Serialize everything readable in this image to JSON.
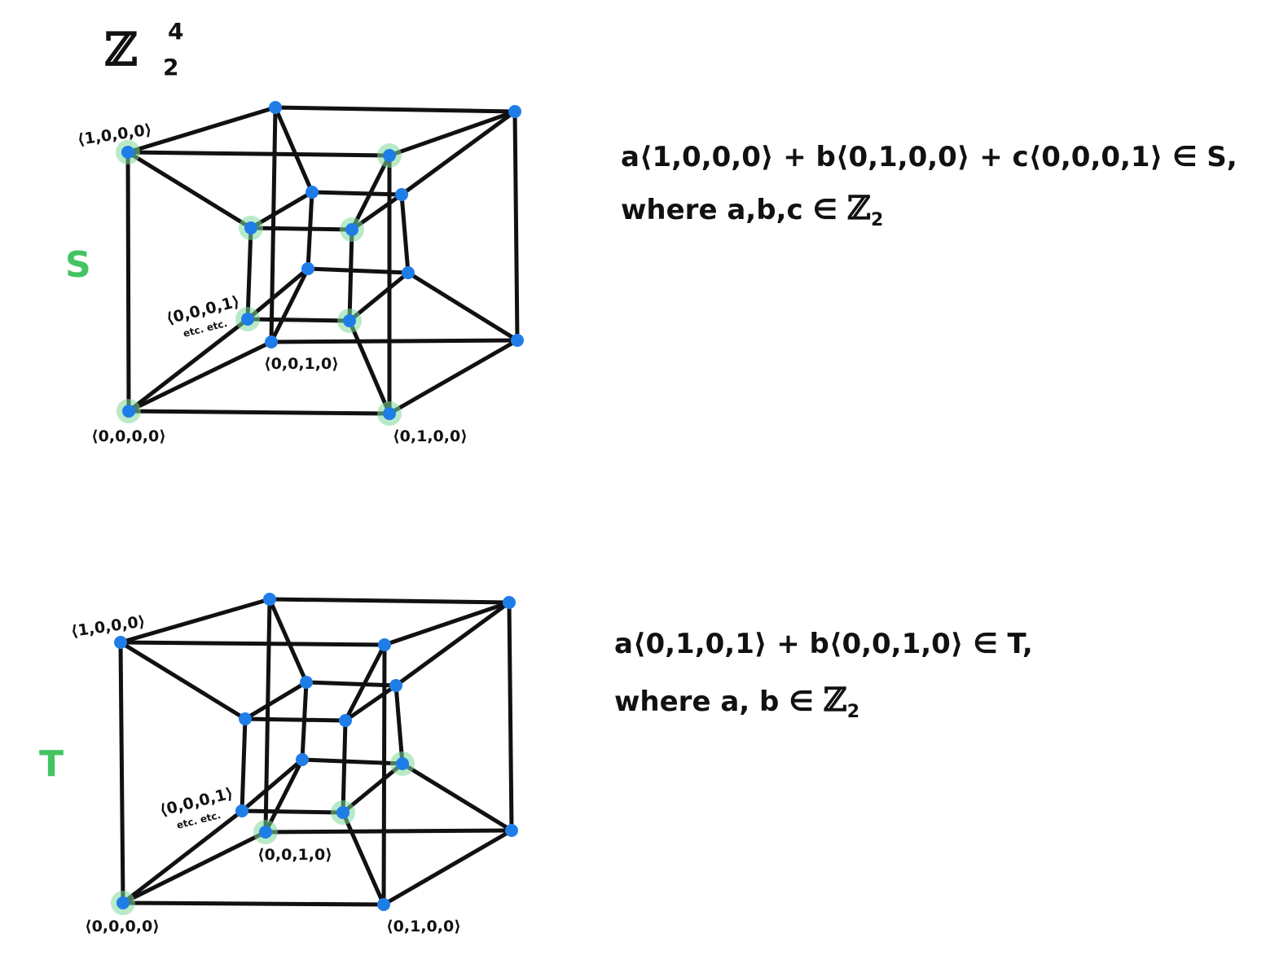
{
  "group": {
    "symbol": "ℤ",
    "subscript": "2",
    "superscript": "4"
  },
  "colors": {
    "edge": "#111111",
    "vertex": "#1f7de8",
    "highlight": "#7fd89a",
    "set_label": "#43c463"
  },
  "diagrams": [
    {
      "set_label": "S",
      "highlighted_vertices": [
        "1000",
        "0000",
        "0100",
        "0001",
        "1100",
        "0101",
        "1001",
        "1101"
      ],
      "labels": {
        "v1000": "⟨1,0,0,0⟩",
        "v0000": "⟨0,0,0,0⟩",
        "v0100": "⟨0,1,0,0⟩",
        "v0010": "⟨0,0,1,0⟩",
        "v0001": "⟨0,0,0,1⟩",
        "etc": "etc. etc."
      },
      "expression": {
        "line1": "a⟨1,0,0,0⟩ + b⟨0,1,0,0⟩ + c⟨0,0,0,1⟩ ∈ S,",
        "line2_prefix": "where a,b,c ∈ ",
        "line2_symbol": "ℤ",
        "line2_sub": "2"
      }
    },
    {
      "set_label": "T",
      "highlighted_vertices": [
        "0000",
        "0101",
        "0010",
        "0111"
      ],
      "labels": {
        "v1000": "⟨1,0,0,0⟩",
        "v0000": "⟨0,0,0,0⟩",
        "v0100": "⟨0,1,0,0⟩",
        "v0010": "⟨0,0,1,0⟩",
        "v0001": "⟨0,0,0,1⟩",
        "etc": "etc. etc."
      },
      "expression": {
        "line1": "a⟨0,1,0,1⟩ + b⟨0,0,1,0⟩ ∈ T,",
        "line2_prefix": "where  a, b ∈ ",
        "line2_symbol": "ℤ",
        "line2_sub": "2"
      }
    }
  ]
}
